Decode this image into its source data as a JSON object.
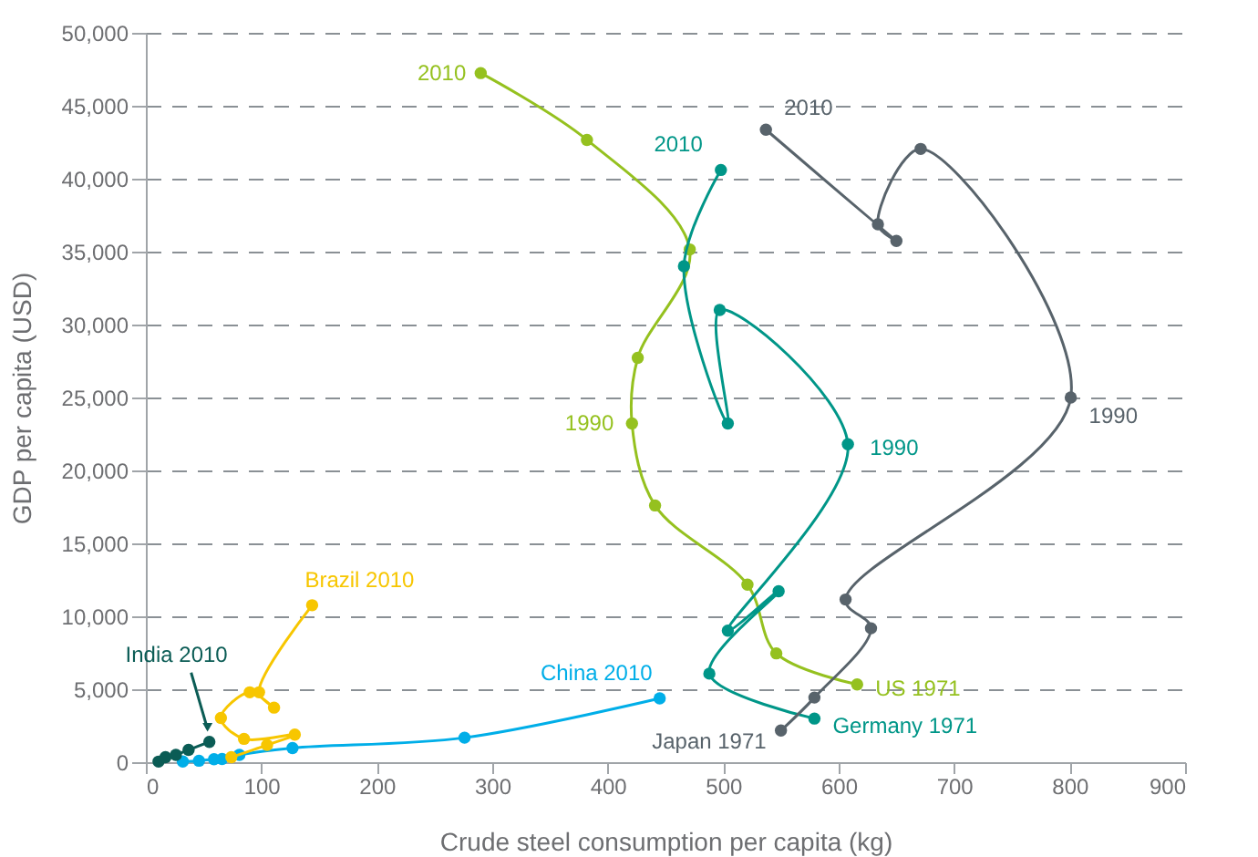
{
  "chart_data": {
    "type": "line",
    "xlabel": "Crude steel consumption per capita (kg)",
    "ylabel": "GDP per capita (USD)",
    "xlim": [
      0,
      900
    ],
    "xticks": [
      0,
      100,
      200,
      300,
      400,
      500,
      600,
      700,
      800,
      900
    ],
    "ylim": [
      0,
      50000
    ],
    "yticks": [
      0,
      {
        "value": 5000,
        "label": "5,000"
      },
      {
        "value": 10000,
        "label": "10,000"
      },
      {
        "value": 15000,
        "label": "15,000"
      },
      {
        "value": 20000,
        "label": "20,000"
      },
      {
        "value": 25000,
        "label": "25,000"
      },
      {
        "value": 30000,
        "label": "30,000"
      },
      {
        "value": 35000,
        "label": "35,000"
      },
      {
        "value": 40000,
        "label": "40,000"
      },
      {
        "value": 45000,
        "label": "45,000"
      },
      {
        "value": 50000,
        "label": "50,000"
      }
    ],
    "grid": "y",
    "marker": "circle",
    "series": [
      {
        "color": "#95c11f",
        "x": [
          616,
          546,
          521,
          441,
          421,
          426,
          471,
          382,
          290
        ],
        "values": [
          5330,
          7460,
          12170,
          17600,
          23220,
          27720,
          35150,
          42660,
          47240
        ]
      },
      {
        "color": "#009688",
        "x": [
          579,
          488,
          548,
          504,
          608,
          497,
          504,
          466,
          498
        ],
        "values": [
          2990,
          6070,
          11720,
          9020,
          21800,
          31000,
          23220,
          34000,
          40600
        ]
      },
      {
        "color": "#58636b",
        "x": [
          550,
          579,
          628,
          606,
          801,
          671,
          634,
          650,
          537
        ],
        "values": [
          2170,
          4430,
          9180,
          11150,
          25000,
          42040,
          36880,
          35730,
          43360
        ]
      },
      {
        "color": "#00aee8",
        "x": [
          32,
          46,
          59,
          66,
          81,
          127,
          276,
          445
        ],
        "values": [
          50,
          100,
          200,
          220,
          500,
          970,
          1680,
          4370
        ]
      },
      {
        "color": "#f7c600",
        "x": [
          74,
          105,
          129,
          85,
          65,
          90,
          111,
          98,
          144
        ],
        "values": [
          340,
          1180,
          1890,
          1600,
          3030,
          4790,
          3740,
          4790,
          10760
        ]
      },
      {
        "color": "#0b5c55",
        "x": [
          11,
          17,
          26,
          37,
          55
        ],
        "values": [
          40,
          340,
          500,
          840,
          1390
        ]
      }
    ],
    "annotations": [
      {
        "text": "2010",
        "x": 290,
        "y": 47240
      },
      {
        "text": "1990",
        "x": 421,
        "y": 23220
      },
      {
        "text": "US 1971",
        "x": 616,
        "y": 5330
      },
      {
        "text": "2010",
        "x": 498,
        "y": 40600
      },
      {
        "text": "1990",
        "x": 608,
        "y": 21800
      },
      {
        "text": "Germany 1971",
        "x": 579,
        "y": 2990
      },
      {
        "text": "2010",
        "x": 537,
        "y": 43360
      },
      {
        "text": "1990",
        "x": 801,
        "y": 25000
      },
      {
        "text": "Japan 1971",
        "x": 550,
        "y": 2170
      },
      {
        "text": "China 2010",
        "x": 445,
        "y": 4370
      },
      {
        "text": "Brazil 2010",
        "x": 144,
        "y": 10760
      },
      {
        "text": "India 2010",
        "x": 55,
        "y": 1390
      }
    ]
  }
}
